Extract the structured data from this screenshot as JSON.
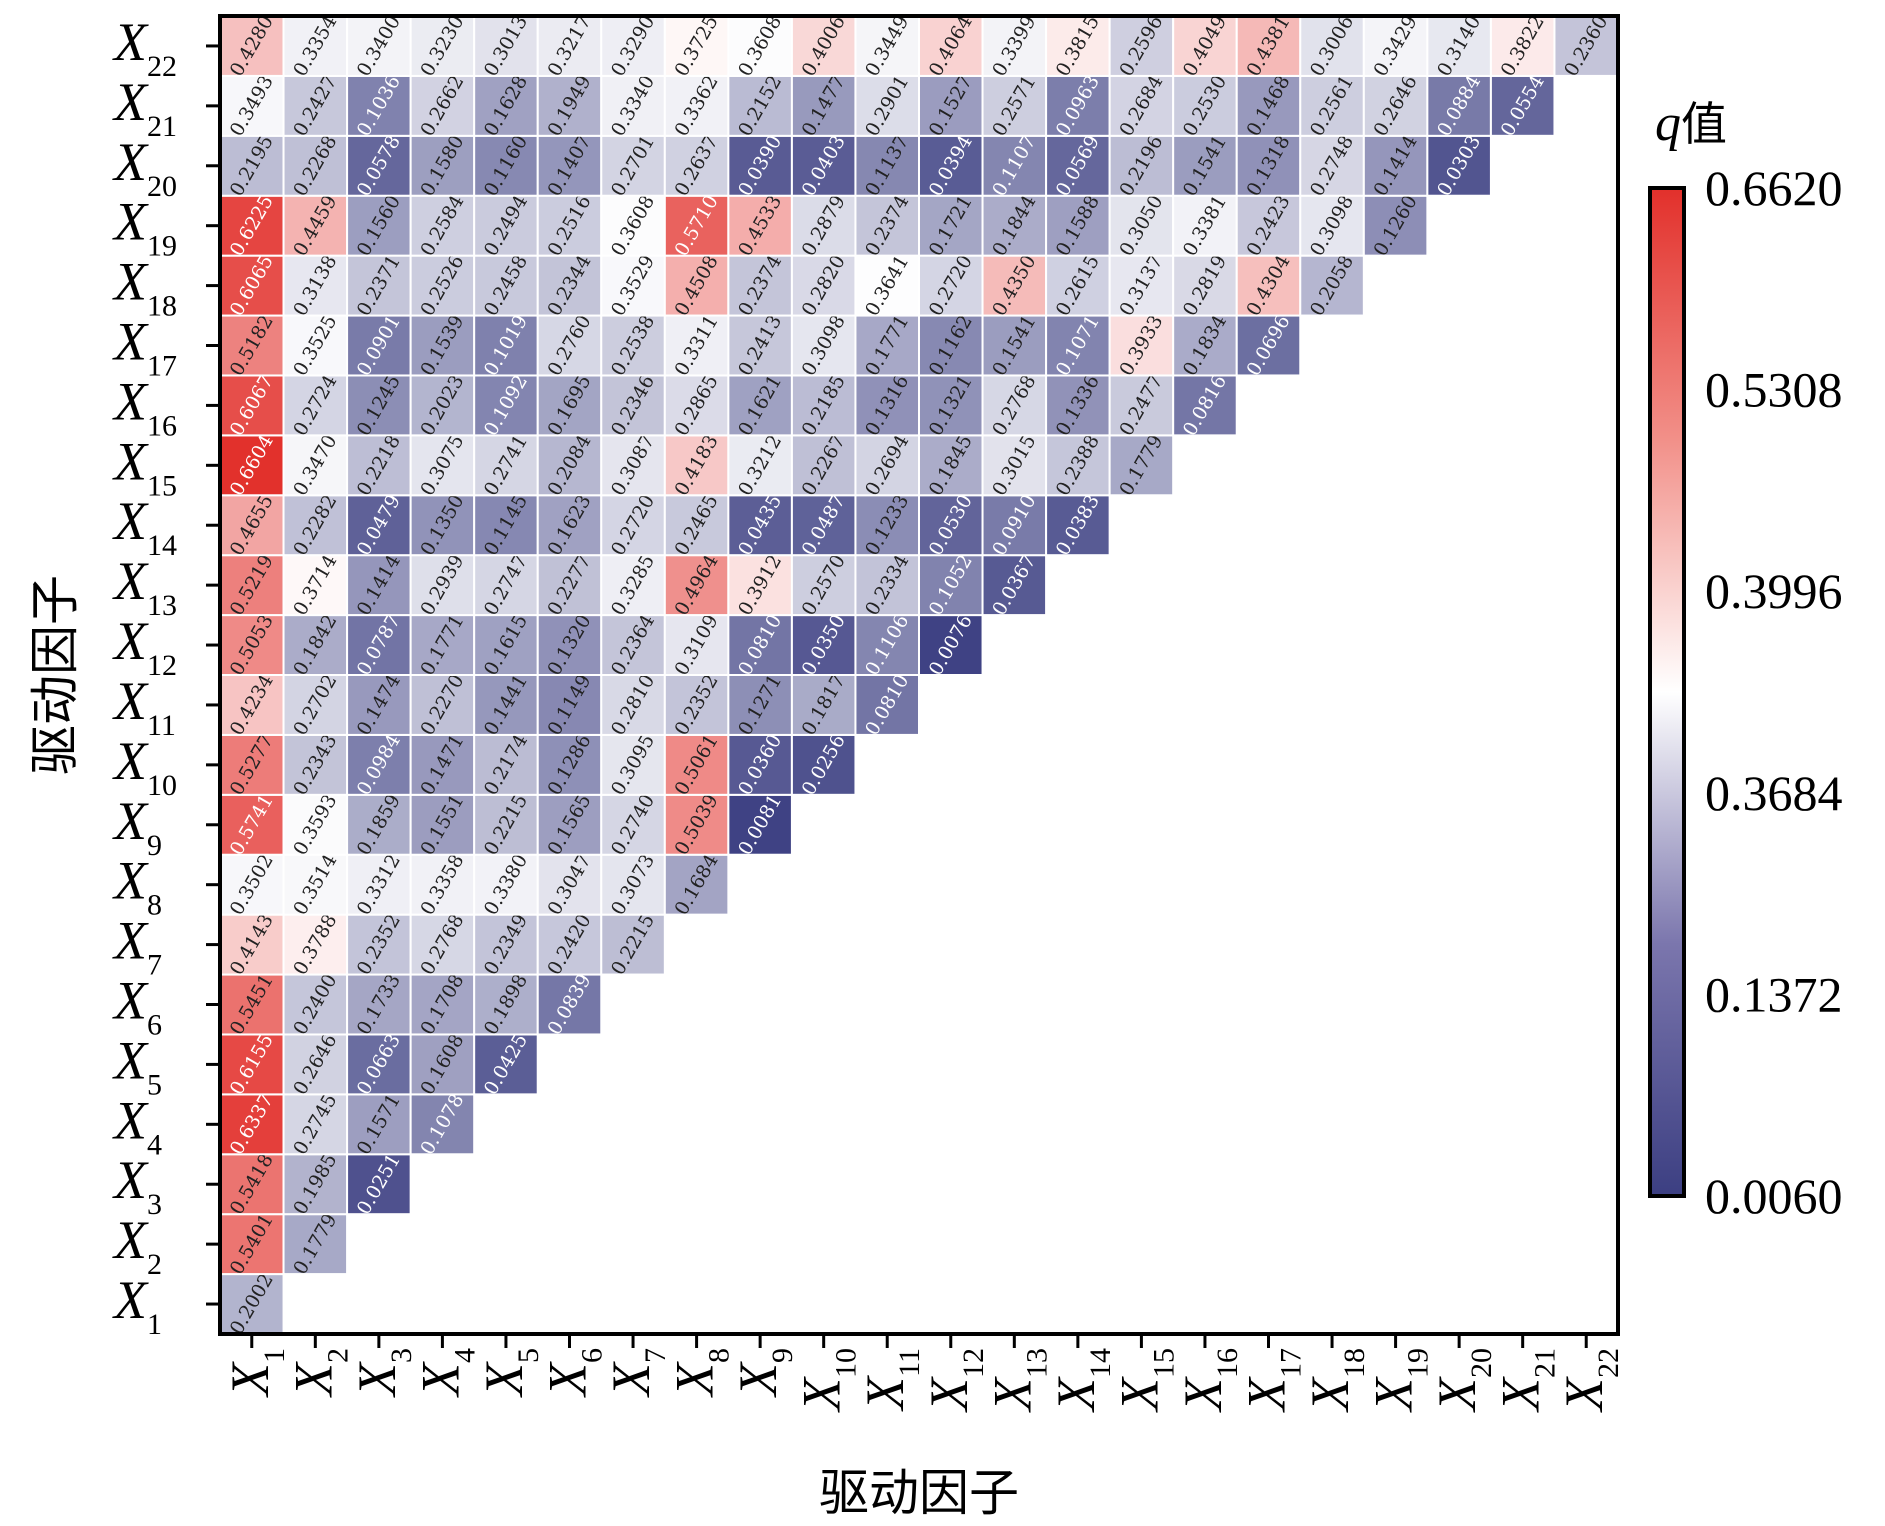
{
  "chart_data": {
    "type": "heatmap",
    "xlabel": "驱动因子",
    "ylabel": "驱动因子",
    "labels": [
      {
        "base": "X",
        "sub": "1"
      },
      {
        "base": "X",
        "sub": "2"
      },
      {
        "base": "X",
        "sub": "3"
      },
      {
        "base": "X",
        "sub": "4"
      },
      {
        "base": "X",
        "sub": "5"
      },
      {
        "base": "X",
        "sub": "6"
      },
      {
        "base": "X",
        "sub": "7"
      },
      {
        "base": "X",
        "sub": "8"
      },
      {
        "base": "X",
        "sub": "9"
      },
      {
        "base": "X",
        "sub": "10"
      },
      {
        "base": "X",
        "sub": "11"
      },
      {
        "base": "X",
        "sub": "12"
      },
      {
        "base": "X",
        "sub": "13"
      },
      {
        "base": "X",
        "sub": "14"
      },
      {
        "base": "X",
        "sub": "15"
      },
      {
        "base": "X",
        "sub": "16"
      },
      {
        "base": "X",
        "sub": "17"
      },
      {
        "base": "X",
        "sub": "18"
      },
      {
        "base": "X",
        "sub": "19"
      },
      {
        "base": "X",
        "sub": "20"
      },
      {
        "base": "X",
        "sub": "21"
      },
      {
        "base": "X",
        "sub": "22"
      }
    ],
    "columns": [
      [
        "0.2002",
        "0.5401",
        "0.5418",
        "0.6337",
        "0.6155",
        "0.5451",
        "0.4143",
        "0.3502",
        "0.5741",
        "0.5277",
        "0.4234",
        "0.5053",
        "0.5219",
        "0.4655",
        "0.6604",
        "0.6067",
        "0.5182",
        "0.6065",
        "0.6225",
        "0.2195",
        "0.3493",
        "0.4280"
      ],
      [
        "0.1779",
        "0.1985",
        "0.2745",
        "0.2646",
        "0.2400",
        "0.3788",
        "0.3514",
        "0.3593",
        "0.2343",
        "0.2702",
        "0.1842",
        "0.3714",
        "0.2282",
        "0.3470",
        "0.2724",
        "0.3525",
        "0.3138",
        "0.4459",
        "0.2268",
        "0.2427",
        "0.3354"
      ],
      [
        "0.0251",
        "0.1571",
        "0.0663",
        "0.1733",
        "0.2352",
        "0.3312",
        "0.1859",
        "0.0984",
        "0.1474",
        "0.0787",
        "0.1414",
        "0.0479",
        "0.2218",
        "0.1245",
        "0.0901",
        "0.2371",
        "0.1560",
        "0.0578",
        "0.1036",
        "0.3400"
      ],
      [
        "0.1078",
        "0.1608",
        "0.1708",
        "0.2768",
        "0.3358",
        "0.1551",
        "0.1471",
        "0.2270",
        "0.1771",
        "0.2939",
        "0.1350",
        "0.3075",
        "0.2023",
        "0.1539",
        "0.2526",
        "0.2584",
        "0.1580",
        "0.2662",
        "0.3230"
      ],
      [
        "0.0425",
        "0.1898",
        "0.2349",
        "0.3380",
        "0.2215",
        "0.2174",
        "0.1441",
        "0.1615",
        "0.2747",
        "0.1145",
        "0.2741",
        "0.1092",
        "0.1019",
        "0.2458",
        "0.2494",
        "0.1160",
        "0.1628",
        "0.3013"
      ],
      [
        "0.0839",
        "0.2420",
        "0.3047",
        "0.1565",
        "0.1286",
        "0.1149",
        "0.1320",
        "0.2277",
        "0.1623",
        "0.2084",
        "0.1695",
        "0.2760",
        "0.2344",
        "0.2516",
        "0.1407",
        "0.1949",
        "0.3217"
      ],
      [
        "0.2215",
        "0.3073",
        "0.2740",
        "0.3095",
        "0.2810",
        "0.2364",
        "0.3285",
        "0.2720",
        "0.3087",
        "0.2346",
        "0.2538",
        "0.3529",
        "0.3608",
        "0.2701",
        "0.3340",
        "0.3290"
      ],
      [
        "0.1684",
        "0.5039",
        "0.5061",
        "0.2352",
        "0.3109",
        "0.4964",
        "0.2465",
        "0.4183",
        "0.2865",
        "0.3311",
        "0.4508",
        "0.5710",
        "0.2637",
        "0.3362",
        "0.3725"
      ],
      [
        "0.0081",
        "0.0360",
        "0.1271",
        "0.0810",
        "0.3912",
        "0.0435",
        "0.3212",
        "0.1621",
        "0.2413",
        "0.2374",
        "0.4533",
        "0.0390",
        "0.2152",
        "0.3608"
      ],
      [
        "0.0256",
        "0.1817",
        "0.0350",
        "0.2570",
        "0.0487",
        "0.2267",
        "0.2185",
        "0.3098",
        "0.2820",
        "0.2879",
        "0.0403",
        "0.1477",
        "0.4006"
      ],
      [
        "0.0810",
        "0.1106",
        "0.2334",
        "0.1233",
        "0.2694",
        "0.1316",
        "0.1771",
        "0.3641",
        "0.2374",
        "0.1137",
        "0.2901",
        "0.3449"
      ],
      [
        "0.0076",
        "0.1052",
        "0.0530",
        "0.1845",
        "0.1321",
        "0.1162",
        "0.2720",
        "0.1721",
        "0.0394",
        "0.1527",
        "0.4064"
      ],
      [
        "0.0367",
        "0.0910",
        "0.3015",
        "0.2768",
        "0.1541",
        "0.4350",
        "0.1844",
        "0.1107",
        "0.2571",
        "0.3399"
      ],
      [
        "0.0383",
        "0.2388",
        "0.1336",
        "0.1071",
        "0.2615",
        "0.1588",
        "0.0569",
        "0.0963",
        "0.3815"
      ],
      [
        "0.1779",
        "0.2477",
        "0.3933",
        "0.3137",
        "0.3050",
        "0.2196",
        "0.2684",
        "0.2596"
      ],
      [
        "0.0816",
        "0.1834",
        "0.2819",
        "0.3381",
        "0.1541",
        "0.2530",
        "0.4049"
      ],
      [
        "0.0696",
        "0.4304",
        "0.2423",
        "0.1318",
        "0.1468",
        "0.4381"
      ],
      [
        "0.2058",
        "0.3098",
        "0.2748",
        "0.2561",
        "0.3006"
      ],
      [
        "0.1260",
        "0.1414",
        "0.2646",
        "0.3429"
      ],
      [
        "0.0303",
        "0.0884",
        "0.3140"
      ],
      [
        "0.0554",
        "0.3822"
      ],
      [
        "0.2360"
      ]
    ],
    "colorbar": {
      "title_var": "q",
      "title_suffix": "值",
      "ticks": [
        "0.6620",
        "0.5308",
        "0.3996",
        "0.3684",
        "0.1372",
        "0.0060"
      ]
    },
    "colors": {
      "low": "#3c3f82",
      "mid": "#ffffff",
      "high": "#e2302b"
    }
  }
}
